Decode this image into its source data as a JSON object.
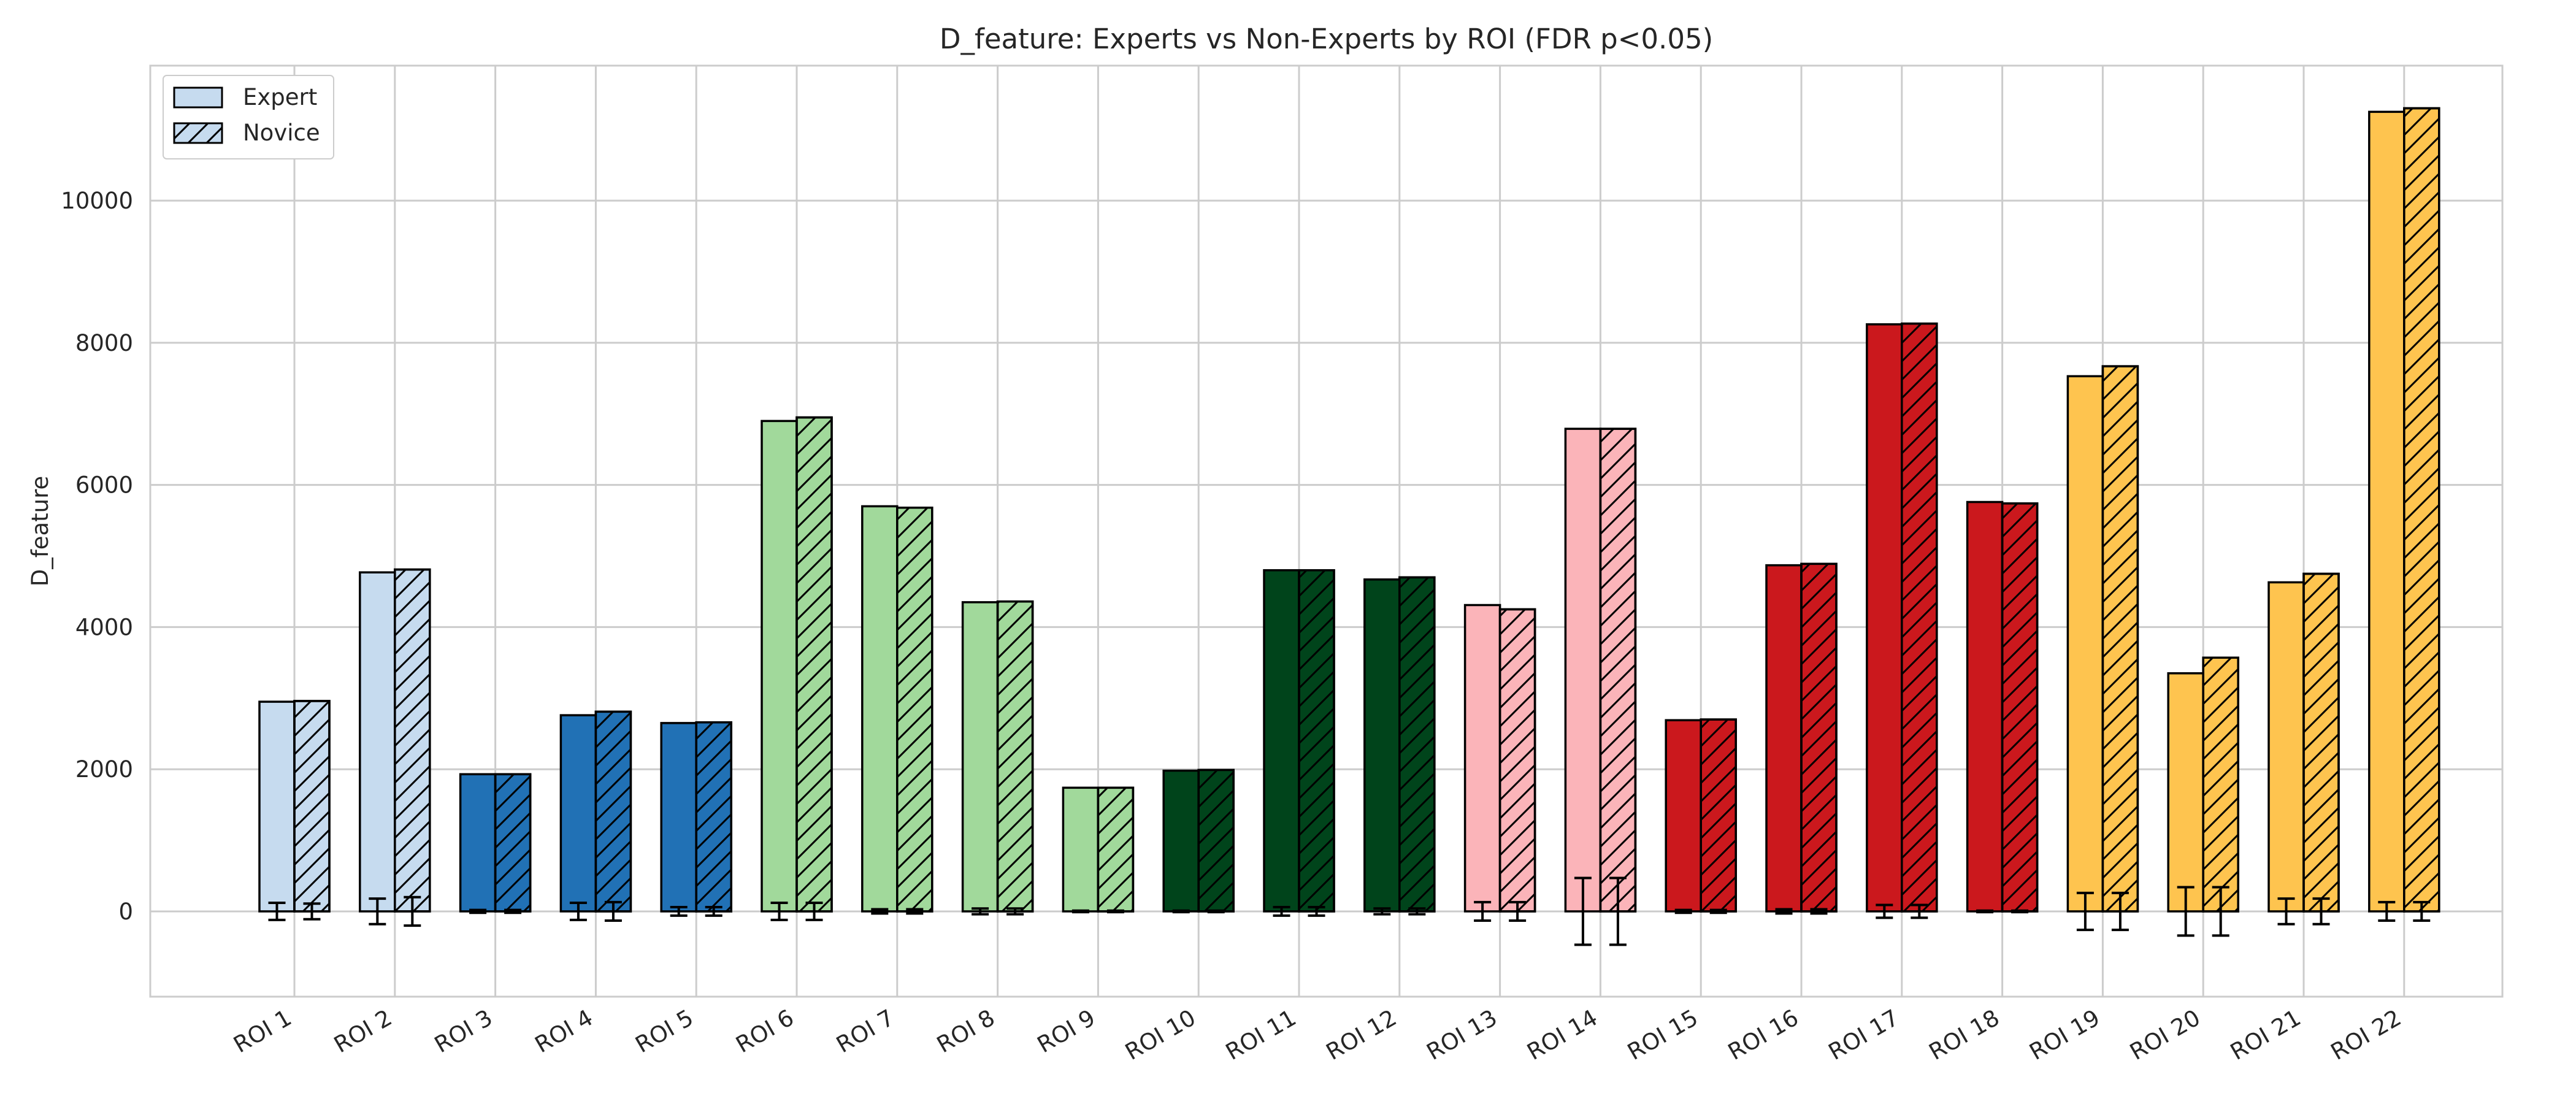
{
  "chart_data": {
    "type": "bar",
    "title": "D_feature: Experts vs Non-Experts by ROI (FDR p<0.05)",
    "xlabel": "",
    "ylabel": "D_feature",
    "ylim": [
      -1200,
      11900
    ],
    "yticks": [
      0,
      2000,
      4000,
      6000,
      8000,
      10000
    ],
    "ytick_labels": [
      "0",
      "2000",
      "4000",
      "6000",
      "8000",
      "10000"
    ],
    "grid": true,
    "legend": {
      "placement": "top-left",
      "entries": [
        "Expert",
        "Novice"
      ]
    },
    "categories": [
      "ROI 1",
      "ROI 2",
      "ROI 3",
      "ROI 4",
      "ROI 5",
      "ROI 6",
      "ROI 7",
      "ROI 8",
      "ROI 9",
      "ROI 10",
      "ROI 11",
      "ROI 12",
      "ROI 13",
      "ROI 14",
      "ROI 15",
      "ROI 16",
      "ROI 17",
      "ROI 18",
      "ROI 19",
      "ROI 20",
      "ROI 21",
      "ROI 22"
    ],
    "category_colors": [
      "#c6dbef",
      "#c6dbef",
      "#2171b5",
      "#2171b5",
      "#2171b5",
      "#a1d99b",
      "#a1d99b",
      "#a1d99b",
      "#a1d99b",
      "#00441b",
      "#00441b",
      "#00441b",
      "#fbb4b9",
      "#fbb4b9",
      "#cb181d",
      "#cb181d",
      "#cb181d",
      "#cb181d",
      "#fec44f",
      "#fec44f",
      "#fec44f",
      "#fec44f"
    ],
    "series": [
      {
        "name": "Expert",
        "hatch": "none",
        "values": [
          2950,
          4770,
          1930,
          2760,
          2650,
          6900,
          5700,
          4350,
          1740,
          1980,
          4800,
          4670,
          4310,
          6790,
          2690,
          4870,
          8260,
          5760,
          7530,
          3350,
          4630,
          11250
        ],
        "errors": [
          120,
          180,
          20,
          120,
          60,
          120,
          30,
          40,
          10,
          10,
          60,
          40,
          130,
          470,
          20,
          30,
          90,
          10,
          260,
          340,
          180,
          130
        ]
      },
      {
        "name": "Novice",
        "hatch": "diagonal",
        "values": [
          2960,
          4810,
          1930,
          2810,
          2660,
          6950,
          5680,
          4360,
          1740,
          1990,
          4800,
          4700,
          4250,
          6790,
          2700,
          4890,
          8270,
          5740,
          7670,
          3570,
          4750,
          11300
        ],
        "errors": [
          110,
          200,
          20,
          130,
          60,
          120,
          30,
          40,
          10,
          10,
          60,
          40,
          130,
          470,
          20,
          30,
          90,
          10,
          260,
          340,
          180,
          130
        ]
      }
    ]
  }
}
